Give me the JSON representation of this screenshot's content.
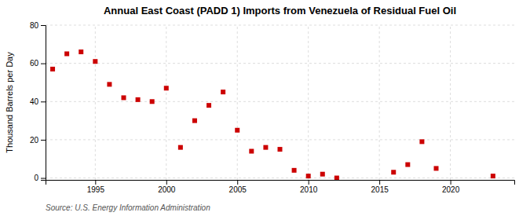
{
  "chart_data": {
    "type": "scatter",
    "title": "Annual East Coast (PADD 1) Imports from Venezuela of Residual Fuel Oil",
    "ylabel": "Thousand Barrels per Day",
    "source": "Source: U.S. Energy Information Administration",
    "x": [
      1992,
      1993,
      1994,
      1995,
      1996,
      1997,
      1998,
      1999,
      2000,
      2001,
      2002,
      2003,
      2004,
      2005,
      2006,
      2007,
      2008,
      2009,
      2010,
      2011,
      2012,
      2016,
      2017,
      2018,
      2019,
      2023
    ],
    "values": [
      57,
      65,
      66,
      61,
      49,
      42,
      41,
      40,
      47,
      16,
      30,
      38,
      45,
      25,
      14,
      16,
      15,
      4,
      1,
      2,
      0,
      3,
      7,
      19,
      5,
      1
    ],
    "color": "#cc0000",
    "marker": "square",
    "xlim": [
      1991.5,
      2024.5
    ],
    "ylim": [
      -1,
      80
    ],
    "xticks": [
      1995,
      2000,
      2005,
      2010,
      2015,
      2020
    ],
    "yticks": [
      0,
      20,
      40,
      60,
      80
    ],
    "grid": true
  }
}
